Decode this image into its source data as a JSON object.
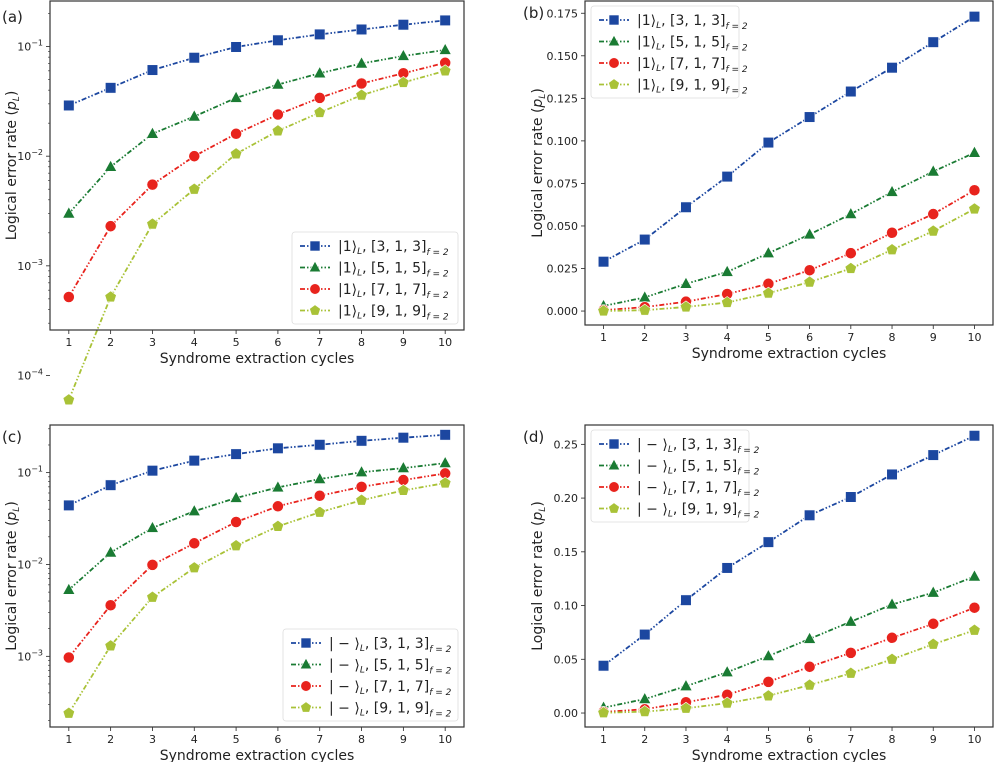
{
  "chart_data": [
    {
      "panel_label": "(a)",
      "type": "line",
      "yscale": "log",
      "xlabel": "Syndrome extraction cycles",
      "ylabel_main": "Logical error rate (",
      "ylabel_var": "p",
      "ylabel_sub": "L",
      "ylabel_end": ")",
      "x": [
        1,
        2,
        3,
        4,
        5,
        6,
        7,
        8,
        9,
        10
      ],
      "xlim": [
        0.55,
        10.45
      ],
      "ylim": [
        0.00026,
        0.26
      ],
      "yticks": [
        0.0001,
        0.001,
        0.01,
        0.1
      ],
      "ytick_labels": [
        "10",
        "10",
        "10",
        "10"
      ],
      "ytick_exps": [
        "−4",
        "−3",
        "−2",
        "−1"
      ],
      "legend_placement": "lower-right",
      "series": [
        {
          "ket": "|1⟩",
          "code": "[3, 1, 3]",
          "sub": "f = 2",
          "marker": "square",
          "color": "#1c47a0",
          "values": [
            0.029,
            0.042,
            0.061,
            0.079,
            0.099,
            0.114,
            0.129,
            0.143,
            0.158,
            0.173
          ]
        },
        {
          "ket": "|1⟩",
          "code": "[5, 1, 5]",
          "sub": "f = 2",
          "marker": "triangle",
          "color": "#1a7b33",
          "values": [
            0.003,
            0.008,
            0.016,
            0.023,
            0.034,
            0.045,
            0.057,
            0.07,
            0.082,
            0.093
          ]
        },
        {
          "ket": "|1⟩",
          "code": "[7, 1, 7]",
          "sub": "f = 2",
          "marker": "circle",
          "color": "#e8231d",
          "values": [
            0.00052,
            0.0023,
            0.0055,
            0.01,
            0.016,
            0.024,
            0.034,
            0.046,
            0.057,
            0.071
          ]
        },
        {
          "ket": "|1⟩",
          "code": "[9, 1, 9]",
          "sub": "f = 2",
          "marker": "pentagon",
          "color": "#a9c237",
          "values": [
            6e-05,
            0.00052,
            0.0024,
            0.005,
            0.0105,
            0.017,
            0.025,
            0.036,
            0.047,
            0.06
          ]
        }
      ]
    },
    {
      "panel_label": "(b)",
      "type": "line",
      "yscale": "linear",
      "xlabel": "Syndrome extraction cycles",
      "ylabel_main": "Logical error rate (",
      "ylabel_var": "p",
      "ylabel_sub": "L",
      "ylabel_end": ")",
      "x": [
        1,
        2,
        3,
        4,
        5,
        6,
        7,
        8,
        9,
        10
      ],
      "xlim": [
        0.55,
        10.45
      ],
      "ylim": [
        -0.0082,
        0.1822
      ],
      "yticks": [
        0,
        0.025,
        0.05,
        0.075,
        0.1,
        0.125,
        0.15,
        0.175
      ],
      "ytick_labels": [
        "0.000",
        "0.025",
        "0.050",
        "0.075",
        "0.100",
        "0.125",
        "0.150",
        "0.175"
      ],
      "legend_placement": "upper-left",
      "series": [
        {
          "ket": "|1⟩",
          "code": "[3, 1, 3]",
          "sub": "f = 2",
          "marker": "square",
          "color": "#1c47a0",
          "values": [
            0.029,
            0.042,
            0.061,
            0.079,
            0.099,
            0.114,
            0.129,
            0.143,
            0.158,
            0.173
          ]
        },
        {
          "ket": "|1⟩",
          "code": "[5, 1, 5]",
          "sub": "f = 2",
          "marker": "triangle",
          "color": "#1a7b33",
          "values": [
            0.003,
            0.008,
            0.016,
            0.023,
            0.034,
            0.045,
            0.057,
            0.07,
            0.082,
            0.093
          ]
        },
        {
          "ket": "|1⟩",
          "code": "[7, 1, 7]",
          "sub": "f = 2",
          "marker": "circle",
          "color": "#e8231d",
          "values": [
            0.0005,
            0.0023,
            0.0055,
            0.01,
            0.016,
            0.024,
            0.034,
            0.046,
            0.057,
            0.071
          ]
        },
        {
          "ket": "|1⟩",
          "code": "[9, 1, 9]",
          "sub": "f = 2",
          "marker": "pentagon",
          "color": "#a9c237",
          "values": [
            6e-05,
            0.0005,
            0.0024,
            0.005,
            0.0105,
            0.017,
            0.025,
            0.036,
            0.047,
            0.06
          ]
        }
      ]
    },
    {
      "panel_label": "(c)",
      "type": "line",
      "yscale": "log",
      "xlabel": "Syndrome extraction cycles",
      "ylabel_main": "Logical error rate (",
      "ylabel_var": "p",
      "ylabel_sub": "L",
      "ylabel_end": ")",
      "x": [
        1,
        2,
        3,
        4,
        5,
        6,
        7,
        8,
        9,
        10
      ],
      "xlim": [
        0.55,
        10.45
      ],
      "ylim": [
        0.00017,
        0.33
      ],
      "yticks": [
        0.001,
        0.01,
        0.1
      ],
      "ytick_labels": [
        "10",
        "10",
        "10"
      ],
      "ytick_exps": [
        "−3",
        "−2",
        "−1"
      ],
      "legend_placement": "lower-right",
      "series": [
        {
          "ket": "| − ⟩",
          "code": "[3, 1, 3]",
          "sub": "f = 2",
          "marker": "square",
          "color": "#1c47a0",
          "values": [
            0.044,
            0.073,
            0.105,
            0.135,
            0.159,
            0.184,
            0.201,
            0.222,
            0.24,
            0.258
          ]
        },
        {
          "ket": "| − ⟩",
          "code": "[5, 1, 5]",
          "sub": "f = 2",
          "marker": "triangle",
          "color": "#1a7b33",
          "values": [
            0.0053,
            0.0135,
            0.025,
            0.038,
            0.053,
            0.069,
            0.085,
            0.101,
            0.112,
            0.127
          ]
        },
        {
          "ket": "| − ⟩",
          "code": "[7, 1, 7]",
          "sub": "f = 2",
          "marker": "circle",
          "color": "#e8231d",
          "values": [
            0.00097,
            0.0036,
            0.0099,
            0.017,
            0.029,
            0.043,
            0.056,
            0.07,
            0.083,
            0.098
          ]
        },
        {
          "ket": "| − ⟩",
          "code": "[9, 1, 9]",
          "sub": "f = 2",
          "marker": "pentagon",
          "color": "#a9c237",
          "values": [
            0.00024,
            0.0013,
            0.0044,
            0.0092,
            0.016,
            0.026,
            0.037,
            0.05,
            0.064,
            0.077
          ]
        }
      ]
    },
    {
      "panel_label": "(d)",
      "type": "line",
      "yscale": "linear",
      "xlabel": "Syndrome extraction cycles",
      "ylabel_main": "Logical error rate (",
      "ylabel_var": "p",
      "ylabel_sub": "L",
      "ylabel_end": ")",
      "x": [
        1,
        2,
        3,
        4,
        5,
        6,
        7,
        8,
        9,
        10
      ],
      "xlim": [
        0.55,
        10.45
      ],
      "ylim": [
        -0.013,
        0.268
      ],
      "yticks": [
        0,
        0.05,
        0.1,
        0.15,
        0.2,
        0.25
      ],
      "ytick_labels": [
        "0.00",
        "0.05",
        "0.10",
        "0.15",
        "0.20",
        "0.25"
      ],
      "legend_placement": "upper-left",
      "series": [
        {
          "ket": "| − ⟩",
          "code": "[3, 1, 3]",
          "sub": "f = 2",
          "marker": "square",
          "color": "#1c47a0",
          "values": [
            0.044,
            0.073,
            0.105,
            0.135,
            0.159,
            0.184,
            0.201,
            0.222,
            0.24,
            0.258
          ]
        },
        {
          "ket": "| − ⟩",
          "code": "[5, 1, 5]",
          "sub": "f = 2",
          "marker": "triangle",
          "color": "#1a7b33",
          "values": [
            0.005,
            0.013,
            0.025,
            0.038,
            0.053,
            0.069,
            0.085,
            0.101,
            0.112,
            0.127
          ]
        },
        {
          "ket": "| − ⟩",
          "code": "[7, 1, 7]",
          "sub": "f = 2",
          "marker": "circle",
          "color": "#e8231d",
          "values": [
            0.001,
            0.0035,
            0.01,
            0.017,
            0.029,
            0.043,
            0.056,
            0.07,
            0.083,
            0.098
          ]
        },
        {
          "ket": "| − ⟩",
          "code": "[9, 1, 9]",
          "sub": "f = 2",
          "marker": "pentagon",
          "color": "#a9c237",
          "values": [
            0.00024,
            0.0013,
            0.0044,
            0.0092,
            0.016,
            0.026,
            0.037,
            0.05,
            0.064,
            0.077
          ]
        }
      ]
    }
  ]
}
